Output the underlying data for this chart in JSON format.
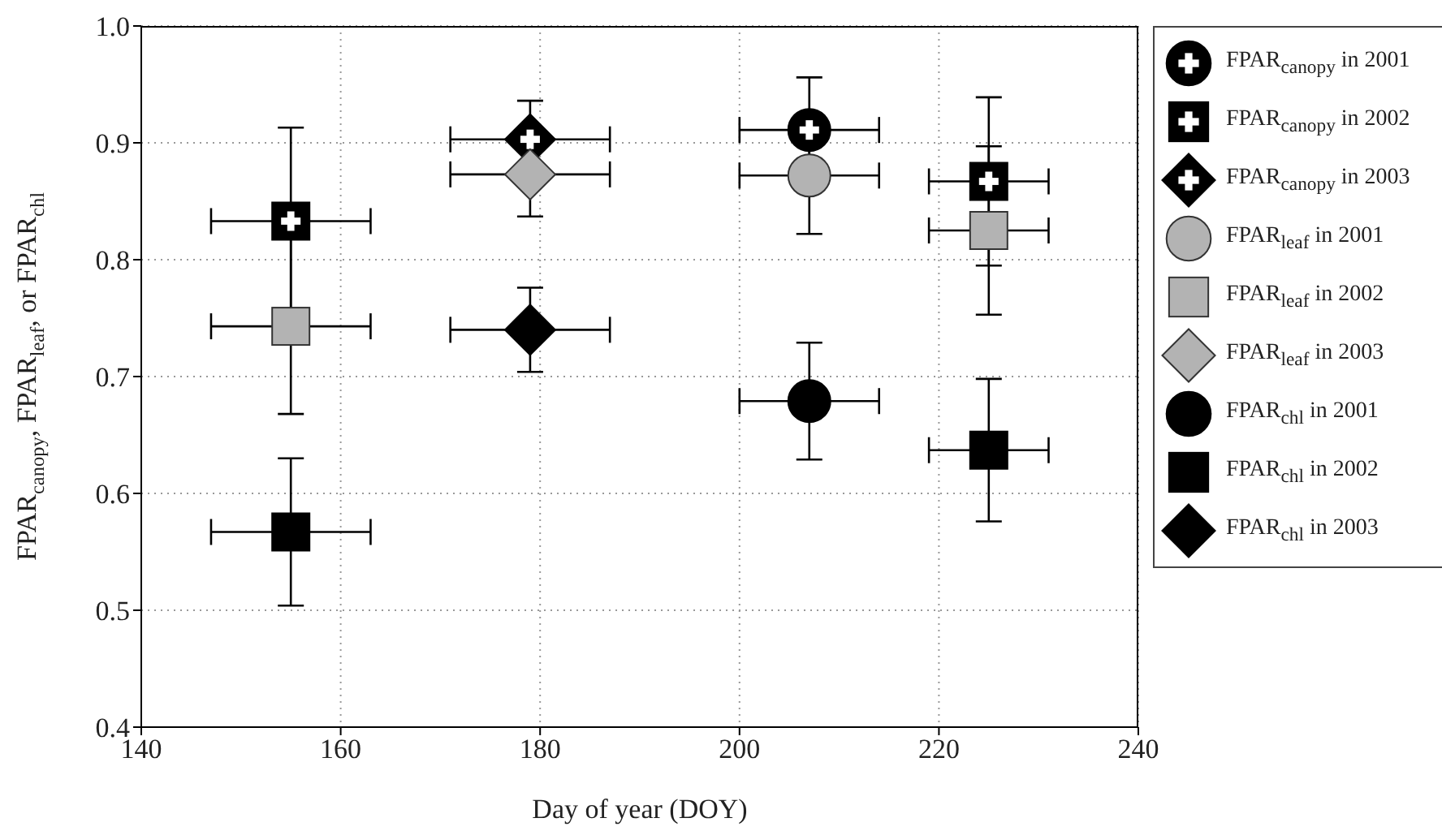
{
  "chart_data": {
    "type": "scatter",
    "xlabel": "Day of year (DOY)",
    "ylabel": "FPAR$_{canopy}$, FPAR$_{leaf}$, or FPAR$_{chl}$",
    "xlim": [
      140,
      240
    ],
    "xticks": [
      140,
      160,
      180,
      200,
      220,
      240
    ],
    "ylim": [
      0.4,
      1.0
    ],
    "yticks": [
      0.4,
      0.5,
      0.6,
      0.7,
      0.8,
      0.9,
      {
        "value": 1,
        "label": "1.0"
      }
    ],
    "grid": true,
    "legend": "right",
    "series": [
      {
        "name": "FPAR$_{canopy}$ in 2001",
        "color": "#000000",
        "marker": "circle",
        "x": [
          207
        ],
        "values": [
          0.911
        ],
        "errors": [
          0.045
        ],
        "xerrors": [
          7
        ]
      },
      {
        "name": "FPAR$_{canopy}$ in 2002",
        "color": "#000000",
        "marker": "square",
        "x": [
          155,
          225
        ],
        "values": [
          0.833,
          0.867
        ],
        "errors": [
          0.08,
          0.072
        ],
        "xerrors": [
          8,
          6
        ]
      },
      {
        "name": "FPAR$_{canopy}$ in 2003",
        "color": "#000000",
        "marker": "diamond",
        "x": [
          179
        ],
        "values": [
          0.903
        ],
        "errors": [
          0.033
        ],
        "xerrors": [
          8
        ]
      },
      {
        "name": "FPAR$_{leaf}$ in 2001",
        "color": "#b3b3b3",
        "marker": "circle",
        "x": [
          207
        ],
        "values": [
          0.872
        ],
        "errors": [
          0.05
        ],
        "xerrors": [
          7
        ]
      },
      {
        "name": "FPAR$_{leaf}$ in 2002",
        "color": "#b3b3b3",
        "marker": "square",
        "x": [
          155,
          225
        ],
        "values": [
          0.743,
          0.825
        ],
        "errors": [
          0.075,
          0.072
        ],
        "xerrors": [
          8,
          6
        ]
      },
      {
        "name": "FPAR$_{leaf}$ in 2003",
        "color": "#b3b3b3",
        "marker": "diamond",
        "x": [
          179
        ],
        "values": [
          0.873
        ],
        "errors": [
          0.036
        ],
        "xerrors": [
          8
        ]
      },
      {
        "name": "FPAR$_{chl}$ in 2001",
        "color": "#000000",
        "marker": "circle",
        "x": [
          207
        ],
        "values": [
          0.679
        ],
        "errors": [
          0.05
        ],
        "xerrors": [
          7
        ]
      },
      {
        "name": "FPAR$_{chl}$ in 2002",
        "color": "#000000",
        "marker": "square",
        "x": [
          155,
          225
        ],
        "values": [
          0.567,
          0.637
        ],
        "errors": [
          0.063,
          0.061
        ],
        "xerrors": [
          8,
          6
        ]
      },
      {
        "name": "FPAR$_{chl}$ in 2003",
        "color": "#000000",
        "marker": "diamond",
        "x": [
          179
        ],
        "values": [
          0.74
        ],
        "errors": [
          0.036
        ],
        "xerrors": [
          8
        ]
      }
    ]
  }
}
